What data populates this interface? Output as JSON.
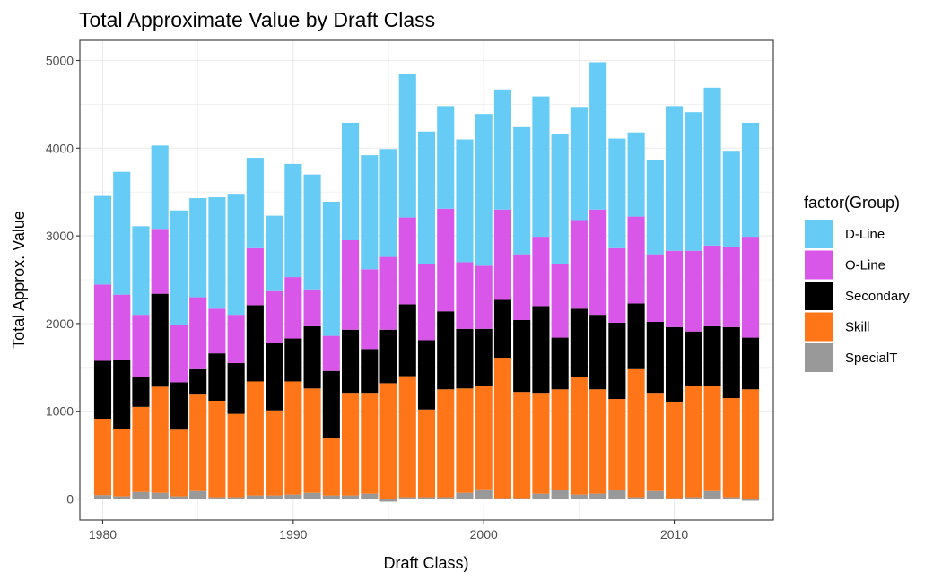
{
  "chart_data": {
    "type": "bar",
    "stacked": true,
    "title": "Total Approximate Value by Draft Class",
    "xlabel": "Draft Class)",
    "ylabel": "Total Approx. Value",
    "xlim": [
      1978.8,
      2015.2
    ],
    "ylim": [
      -240,
      5230
    ],
    "x_ticks": [
      1980,
      1990,
      2000,
      2010
    ],
    "y_ticks": [
      0,
      1000,
      2000,
      3000,
      4000,
      5000
    ],
    "grid": true,
    "legend_position": "right",
    "legend_title": "factor(Group)",
    "x": [
      1980,
      1981,
      1982,
      1983,
      1984,
      1985,
      1986,
      1987,
      1988,
      1989,
      1990,
      1991,
      1992,
      1993,
      1994,
      1995,
      1996,
      1997,
      1998,
      1999,
      2000,
      2001,
      2002,
      2003,
      2004,
      2005,
      2006,
      2007,
      2008,
      2009,
      2010,
      2011,
      2012,
      2013,
      2014
    ],
    "stack_order": [
      "SpecialT",
      "Skill",
      "Secondary",
      "O-Line",
      "D-Line"
    ],
    "series": [
      {
        "name": "D-Line",
        "color": "#66CCF5",
        "values": [
          1010,
          1400,
          1010,
          950,
          1310,
          1130,
          1270,
          1380,
          1030,
          850,
          1290,
          1310,
          1530,
          1340,
          1300,
          1230,
          1640,
          1510,
          1170,
          1400,
          1730,
          1370,
          1450,
          1600,
          1480,
          1290,
          1680,
          1250,
          960,
          1080,
          1650,
          1580,
          1800,
          1100,
          1300
        ]
      },
      {
        "name": "O-Line",
        "color": "#D957E8",
        "values": [
          870,
          740,
          710,
          740,
          650,
          810,
          510,
          550,
          650,
          600,
          700,
          420,
          400,
          1020,
          910,
          830,
          990,
          870,
          1170,
          760,
          720,
          1030,
          750,
          790,
          840,
          1010,
          1200,
          850,
          990,
          770,
          870,
          920,
          920,
          910,
          1150
        ]
      },
      {
        "name": "Secondary",
        "color": "#000000",
        "values": [
          660,
          790,
          340,
          1060,
          540,
          290,
          540,
          580,
          870,
          770,
          490,
          710,
          770,
          720,
          500,
          610,
          820,
          790,
          890,
          680,
          650,
          660,
          820,
          990,
          590,
          780,
          850,
          870,
          740,
          810,
          850,
          620,
          680,
          810,
          590
        ]
      },
      {
        "name": "Skill",
        "color": "#FF7619",
        "values": [
          870,
          770,
          970,
          1210,
          760,
          1110,
          1100,
          950,
          1300,
          970,
          1290,
          1190,
          650,
          1170,
          1150,
          1320,
          1380,
          1000,
          1230,
          1190,
          1180,
          1600,
          1210,
          1150,
          1150,
          1340,
          1190,
          1040,
          1470,
          1120,
          1100,
          1270,
          1200,
          1130,
          1250
        ]
      },
      {
        "name": "SpecialT",
        "color": "#999999",
        "values": [
          45,
          30,
          80,
          70,
          30,
          90,
          20,
          20,
          40,
          40,
          50,
          70,
          40,
          40,
          60,
          -30,
          20,
          20,
          20,
          70,
          110,
          10,
          10,
          60,
          100,
          50,
          60,
          100,
          20,
          90,
          10,
          20,
          90,
          20,
          -20
        ]
      }
    ]
  }
}
